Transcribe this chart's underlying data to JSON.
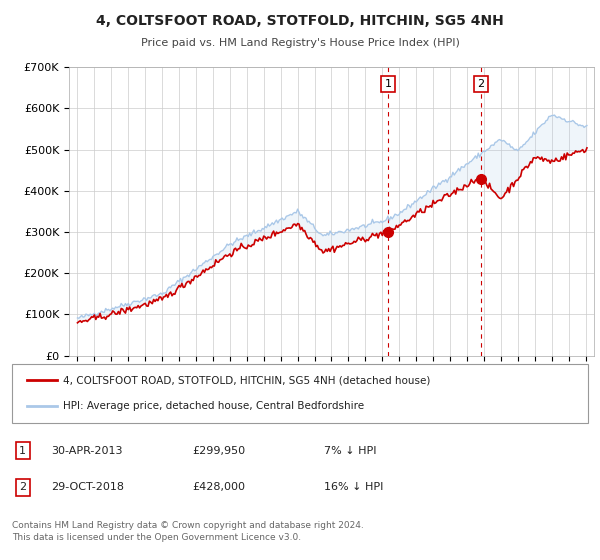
{
  "title": "4, COLTSFOOT ROAD, STOTFOLD, HITCHIN, SG5 4NH",
  "subtitle": "Price paid vs. HM Land Registry's House Price Index (HPI)",
  "background_color": "#ffffff",
  "plot_bg_color": "#ffffff",
  "grid_color": "#cccccc",
  "hpi_color": "#aac8e8",
  "price_color": "#cc0000",
  "sale1_date_num": 2013.33,
  "sale1_price": 299950,
  "sale2_date_num": 2018.83,
  "sale2_price": 428000,
  "legend1": "4, COLTSFOOT ROAD, STOTFOLD, HITCHIN, SG5 4NH (detached house)",
  "legend2": "HPI: Average price, detached house, Central Bedfordshire",
  "table_row1": [
    "1",
    "30-APR-2013",
    "£299,950",
    "7% ↓ HPI"
  ],
  "table_row2": [
    "2",
    "29-OCT-2018",
    "£428,000",
    "16% ↓ HPI"
  ],
  "footnote1": "Contains HM Land Registry data © Crown copyright and database right 2024.",
  "footnote2": "This data is licensed under the Open Government Licence v3.0.",
  "ylim": [
    0,
    700000
  ],
  "yticks": [
    0,
    100000,
    200000,
    300000,
    400000,
    500000,
    600000,
    700000
  ],
  "ytick_labels": [
    "£0",
    "£100K",
    "£200K",
    "£300K",
    "£400K",
    "£500K",
    "£600K",
    "£700K"
  ],
  "xlim_start": 1994.5,
  "xlim_end": 2025.5,
  "xticks": [
    1995,
    1996,
    1997,
    1998,
    1999,
    2000,
    2001,
    2002,
    2003,
    2004,
    2005,
    2006,
    2007,
    2008,
    2009,
    2010,
    2011,
    2012,
    2013,
    2014,
    2015,
    2016,
    2017,
    2018,
    2019,
    2020,
    2021,
    2022,
    2023,
    2024,
    2025
  ]
}
